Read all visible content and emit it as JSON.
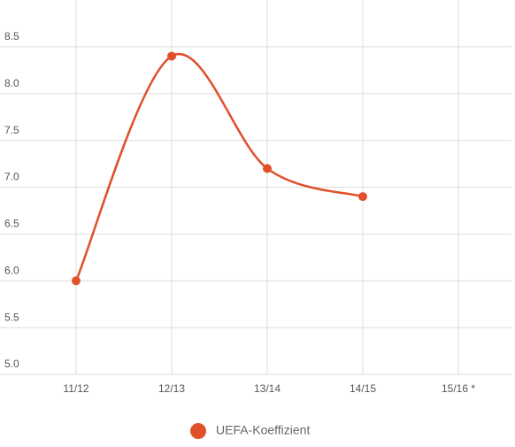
{
  "chart_data": {
    "type": "line",
    "categories": [
      "11/12",
      "12/13",
      "13/14",
      "14/15",
      "15/16 *"
    ],
    "series": [
      {
        "name": "UEFA-Koeffizient",
        "color": "#e0502b",
        "values": [
          6.0,
          8.4,
          7.2,
          6.9,
          null
        ]
      }
    ],
    "ylim": [
      5.0,
      9.0
    ],
    "yticks": [
      {
        "value": 5,
        "label": "5.0"
      },
      {
        "value": 5.5,
        "label": "5.5"
      },
      {
        "value": 6,
        "label": "6.0"
      },
      {
        "value": 6.5,
        "label": "6.5"
      },
      {
        "value": 7,
        "label": "7.0"
      },
      {
        "value": 7.5,
        "label": "7.5"
      },
      {
        "value": 8,
        "label": "8.0"
      },
      {
        "value": 8.5,
        "label": "8.5"
      }
    ],
    "grid": true,
    "smooth": true,
    "legend": "bottom"
  }
}
